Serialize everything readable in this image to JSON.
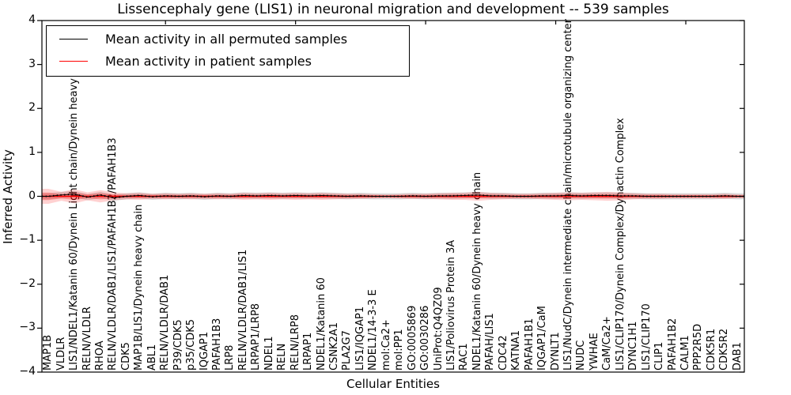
{
  "chart_data": {
    "type": "line",
    "title": "Lissencephaly gene (LIS1) in neuronal migration and development -- 539 samples",
    "xlabel": "Cellular Entities",
    "ylabel": "Inferred Activity",
    "ylim": [
      -4,
      4
    ],
    "yticks": [
      4,
      3,
      2,
      1,
      0,
      -1,
      -2,
      -3,
      -4
    ],
    "grid": false,
    "legend_position": "upper left",
    "colors": {
      "permuted_line": "#000000",
      "patient_line": "#ff0000",
      "patient_band": "rgba(255,0,0,0.18)",
      "patient_band_core": "rgba(255,0,0,0.28)",
      "permuted_band": "rgba(110,110,110,0.25)"
    },
    "legend": [
      {
        "label": "Mean activity in all permuted samples",
        "color": "#000000"
      },
      {
        "label": "Mean activity in patient samples",
        "color": "#ff0000"
      }
    ],
    "categories": [
      "MAP1B",
      "VLDLR",
      "LIS1/NDEL1/Katanin 60/Dynein Light chain/Dynein heavy chain",
      "RELN/VLDLR",
      "RHOA",
      "RELN/VLDLR/DAB1/LIS1/PAFAH1B2/PAFAH1B3",
      "CDK5",
      "MAP1B/LIS1/Dynein heavy chain",
      "ABL1",
      "RELN/VLDLR/DAB1",
      "P39/CDK5",
      "p35/CDK5",
      "IQGAP1",
      "PAFAH1B3",
      "LRP8",
      "RELN/VLDLR/DAB1/LIS1",
      "LRPAP1/LRP8",
      "NDEL1",
      "RELN",
      "RELN/LRP8",
      "LRPAP1",
      "NDEL1/Katanin 60",
      "CSNK2A1",
      "PLA2G7",
      "LIS1/IQGAP1",
      "NDEL1/14-3-3 E",
      "mol:Ca2+",
      "mol:PP1",
      "GO:0005869",
      "GO:0030286",
      "UniProt:Q4QZ09",
      "LIS1/Poliovirus Protein 3A",
      "RAC1",
      "NDEL1/Katanin 60/Dynein heavy chain",
      "PAFAH/LIS1",
      "CDC42",
      "KATNA1",
      "PAFAH1B1",
      "IQGAP1/CaM",
      "DYNLT1",
      "LIS1/NudC/Dynein intermediate chain/microtubule organizing center",
      "NUDC",
      "YWHAE",
      "CaM/Ca2+",
      "LIS1/CLIP170/Dynein Complex/Dynactin Complex",
      "DYNC1H1",
      "LIS1/CLIP170",
      "CLIP1",
      "PAFAH1B2",
      "CALM1",
      "PPP2R5D",
      "CDK5R1",
      "CDK5R2",
      "DAB1"
    ],
    "series": [
      {
        "name": "Mean activity in all permuted samples",
        "values": [
          0.0,
          0.03,
          0.05,
          -0.02,
          0.03,
          -0.03,
          0.0,
          0.02,
          -0.01,
          0.01,
          0.0,
          0.01,
          -0.01,
          0.01,
          0.0,
          0.02,
          0.01,
          0.02,
          0.01,
          0.02,
          0.01,
          0.02,
          0.01,
          0.0,
          0.01,
          0.0,
          0.0,
          0.0,
          0.01,
          0.0,
          0.01,
          0.01,
          0.02,
          0.03,
          0.01,
          0.01,
          0.0,
          0.0,
          0.01,
          0.01,
          0.02,
          0.01,
          0.02,
          0.02,
          0.01,
          0.01,
          0.0,
          0.0,
          0.0,
          0.0,
          0.0,
          0.0,
          0.01,
          0.0
        ],
        "band_halfwidth": [
          0.07,
          0.07,
          0.07,
          0.07,
          0.07,
          0.07,
          0.07,
          0.07,
          0.07,
          0.07,
          0.07,
          0.07,
          0.07,
          0.07,
          0.07,
          0.07,
          0.07,
          0.07,
          0.07,
          0.07,
          0.07,
          0.07,
          0.07,
          0.07,
          0.07,
          0.07,
          0.07,
          0.07,
          0.07,
          0.07,
          0.07,
          0.07,
          0.07,
          0.07,
          0.07,
          0.07,
          0.07,
          0.07,
          0.07,
          0.07,
          0.07,
          0.07,
          0.07,
          0.07,
          0.07,
          0.07,
          0.07,
          0.07,
          0.07,
          0.07,
          0.07,
          0.07,
          0.07,
          0.07
        ]
      },
      {
        "name": "Mean activity in patient samples",
        "values": [
          0,
          0,
          0,
          0,
          0,
          0,
          0,
          0,
          0,
          0,
          0,
          0,
          0,
          0,
          0,
          0,
          0,
          0,
          0,
          0,
          0,
          0,
          0,
          0,
          0,
          0,
          0,
          0,
          0,
          0,
          0,
          0,
          0,
          0,
          0,
          0,
          0,
          0,
          0,
          0,
          0,
          0,
          0,
          0,
          0,
          0,
          0,
          0,
          0,
          0,
          0,
          0,
          0,
          0
        ],
        "band_halfwidth": [
          0.17,
          0.1,
          0.16,
          0.09,
          0.14,
          0.09,
          0.07,
          0.08,
          0.06,
          0.07,
          0.06,
          0.07,
          0.06,
          0.07,
          0.06,
          0.08,
          0.07,
          0.08,
          0.07,
          0.08,
          0.07,
          0.08,
          0.07,
          0.06,
          0.06,
          0.05,
          0.04,
          0.05,
          0.06,
          0.06,
          0.07,
          0.08,
          0.08,
          0.1,
          0.08,
          0.07,
          0.06,
          0.06,
          0.07,
          0.08,
          0.09,
          0.08,
          0.09,
          0.1,
          0.09,
          0.07,
          0.06,
          0.06,
          0.05,
          0.05,
          0.05,
          0.05,
          0.06,
          0.04
        ]
      }
    ]
  }
}
